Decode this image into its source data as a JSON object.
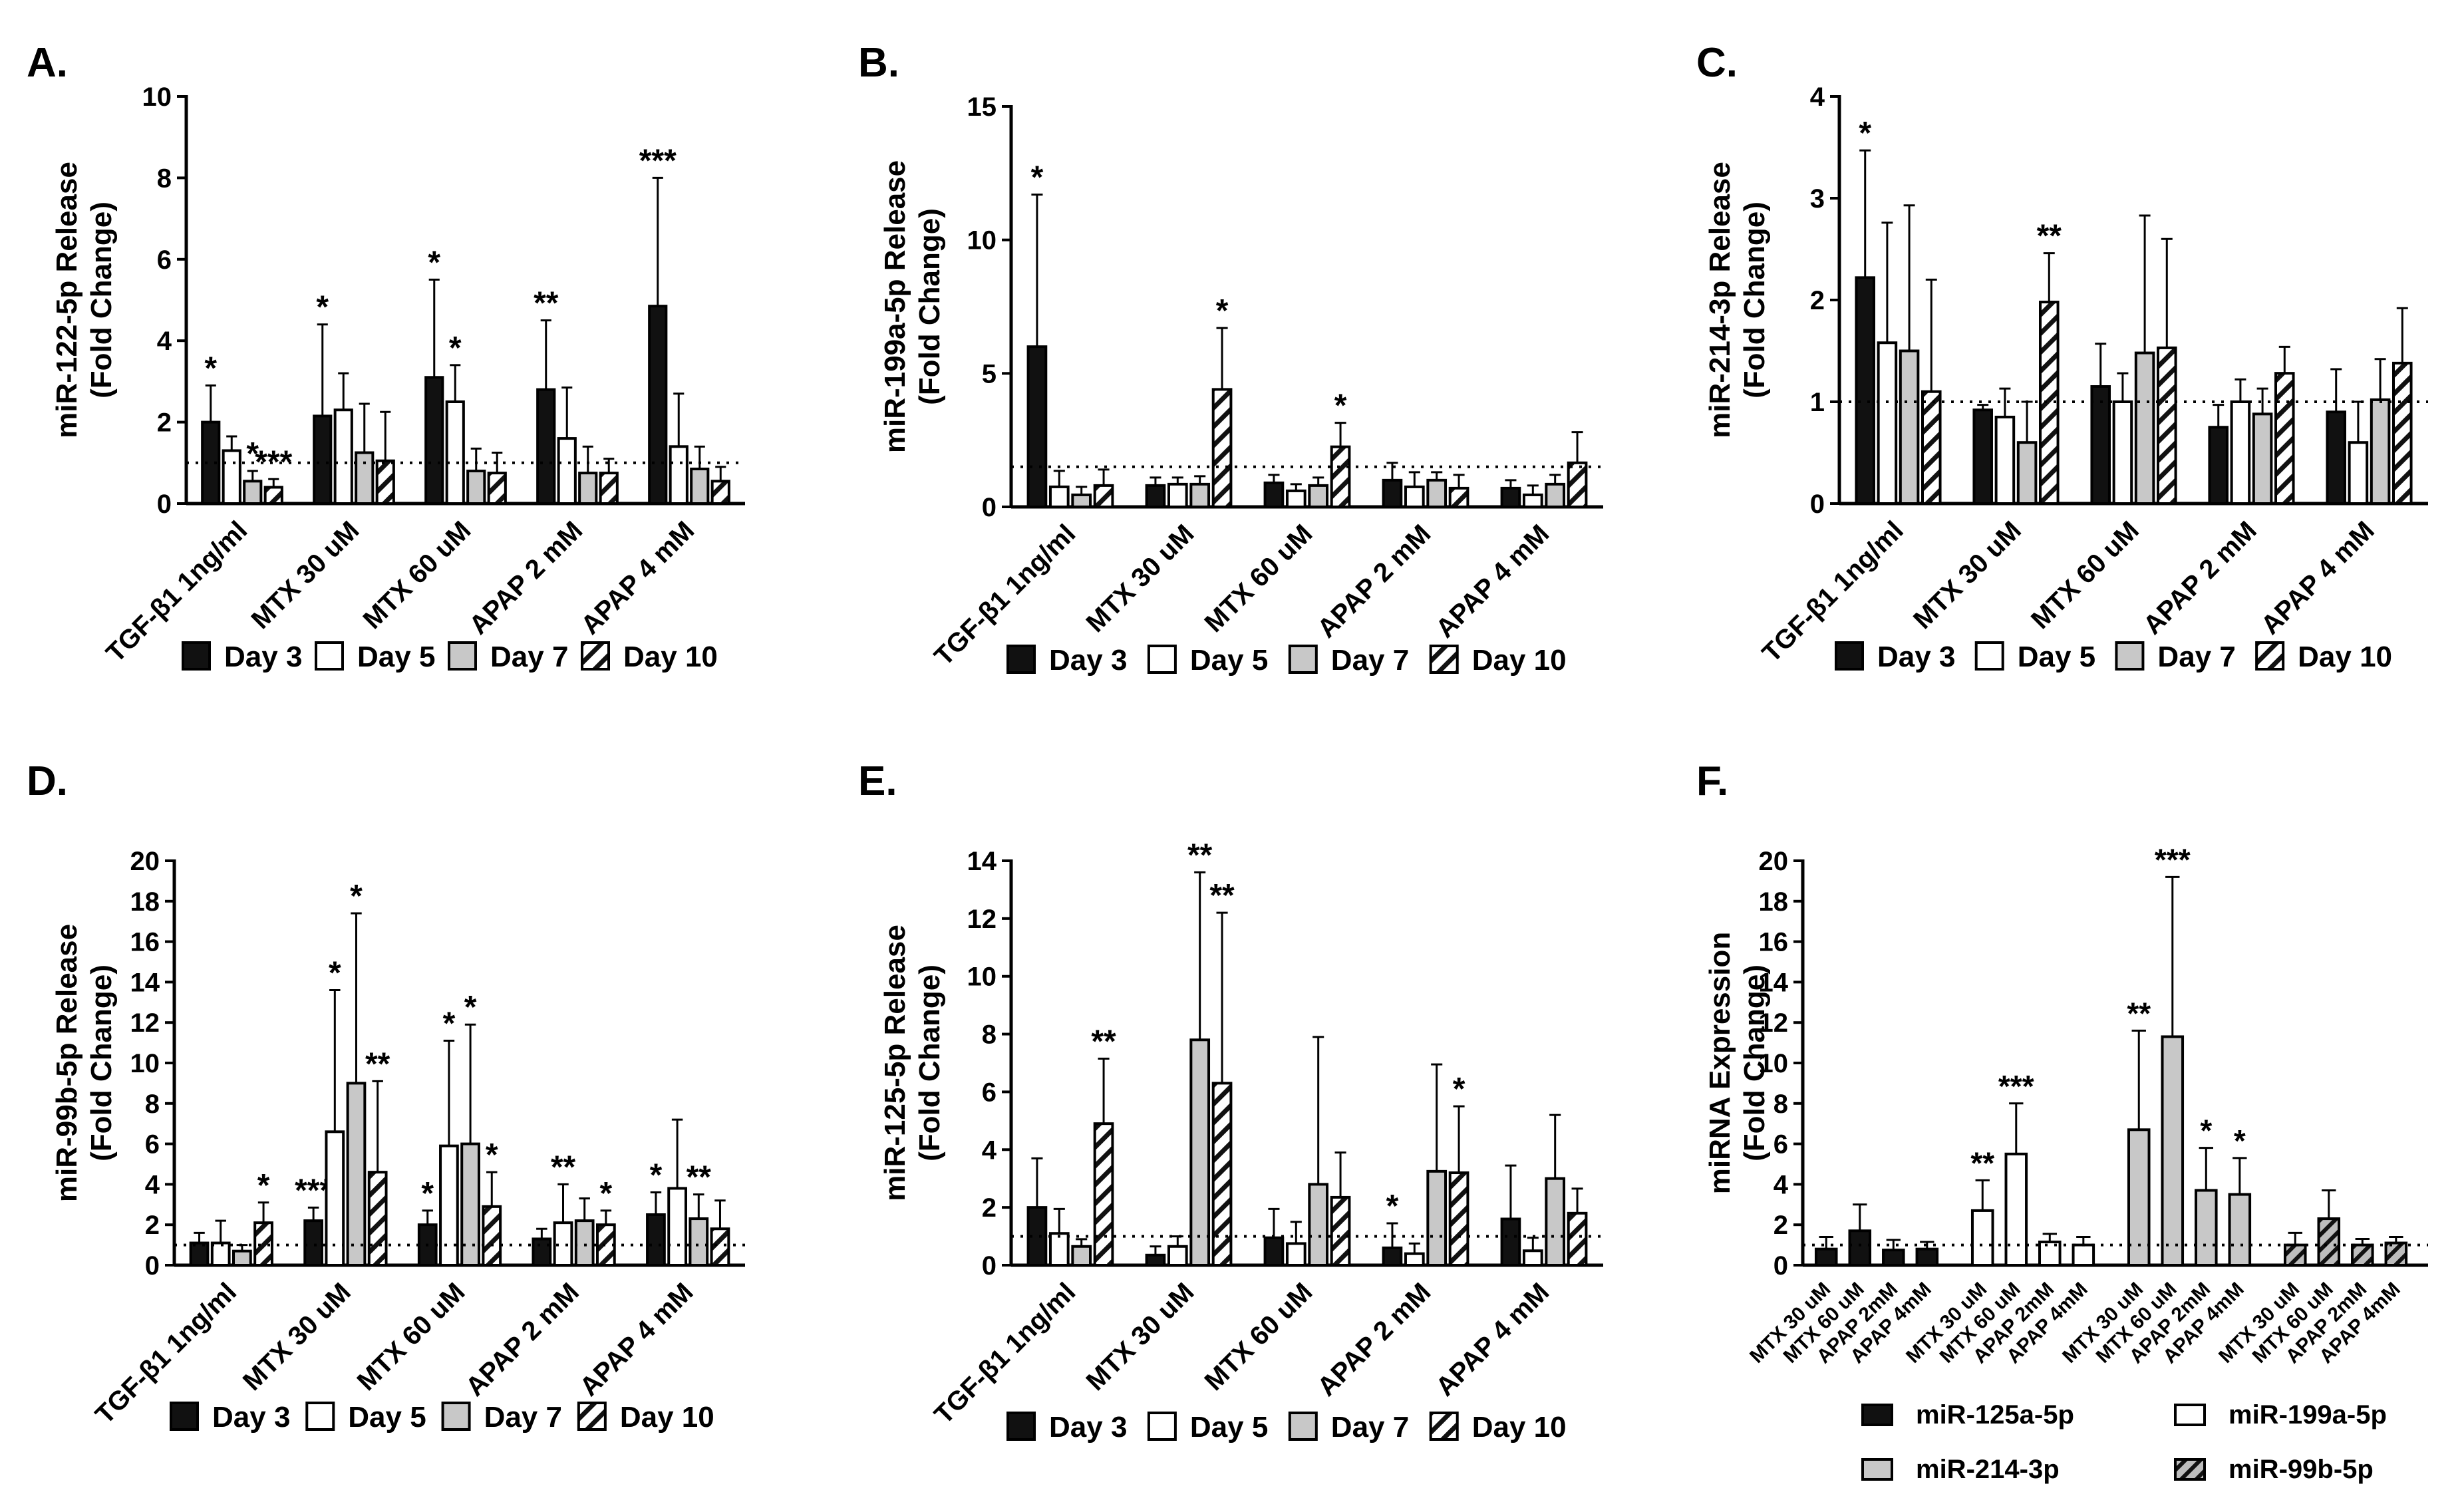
{
  "figure": {
    "legend_day": [
      "Day 3",
      "Day 5",
      "Day 7",
      "Day 10"
    ],
    "legend_mirna": [
      "miR-125a-5p",
      "miR-199a-5p",
      "miR-214-3p",
      "miR-99b-5p"
    ]
  },
  "chart_data": [
    {
      "panel": "A.",
      "type": "bar",
      "ylabel": "miR-122-5p Release",
      "ylabel2": "(Fold Change)",
      "categories": [
        "TGF-β1 1ng/ml",
        "MTX 30 uM",
        "MTX 60 uM",
        "APAP 2 mM",
        "APAP 4 mM"
      ],
      "ylim": [
        0,
        10
      ],
      "yticks": [
        0,
        2,
        4,
        6,
        8,
        10
      ],
      "baseline": 1.0,
      "legend": [
        "Day 3",
        "Day 5",
        "Day 7",
        "Day 10"
      ],
      "series": [
        {
          "name": "Day 3",
          "values": [
            2.0,
            2.15,
            3.1,
            2.8,
            4.85
          ],
          "errors": [
            0.9,
            2.25,
            2.4,
            1.7,
            3.15
          ],
          "sig": [
            "*",
            "*",
            "*",
            "**",
            "***"
          ]
        },
        {
          "name": "Day 5",
          "values": [
            1.3,
            2.3,
            2.5,
            1.6,
            1.4
          ],
          "errors": [
            0.35,
            0.9,
            0.9,
            1.25,
            1.3
          ],
          "sig": [
            "",
            "",
            "*",
            "",
            ""
          ]
        },
        {
          "name": "Day 7",
          "values": [
            0.55,
            1.25,
            0.8,
            0.75,
            0.85
          ],
          "errors": [
            0.25,
            1.2,
            0.55,
            0.65,
            0.55
          ],
          "sig": [
            "*",
            "",
            "",
            "",
            ""
          ]
        },
        {
          "name": "Day 10",
          "values": [
            0.4,
            1.05,
            0.75,
            0.75,
            0.55
          ],
          "errors": [
            0.2,
            1.2,
            0.5,
            0.35,
            0.35
          ],
          "sig": [
            "***",
            "",
            "",
            "",
            ""
          ]
        }
      ]
    },
    {
      "panel": "B.",
      "type": "bar",
      "ylabel": "miR-199a-5p Release",
      "ylabel2": "(Fold Change)",
      "categories": [
        "TGF-β1 1ng/ml",
        "MTX 30 uM",
        "MTX 60 uM",
        "APAP 2 mM",
        "APAP 4 mM"
      ],
      "ylim": [
        0,
        15
      ],
      "yticks": [
        0,
        5,
        10,
        15
      ],
      "baseline": 1.5,
      "legend": [
        "Day 3",
        "Day 5",
        "Day 7",
        "Day 10"
      ],
      "series": [
        {
          "name": "Day 3",
          "values": [
            6.0,
            0.8,
            0.9,
            1.0,
            0.7
          ],
          "errors": [
            5.7,
            0.3,
            0.3,
            0.65,
            0.3
          ],
          "sig": [
            "*",
            "",
            "",
            "",
            ""
          ]
        },
        {
          "name": "Day 5",
          "values": [
            0.75,
            0.85,
            0.6,
            0.75,
            0.45
          ],
          "errors": [
            0.6,
            0.25,
            0.25,
            0.55,
            0.35
          ],
          "sig": [
            "",
            "",
            "",
            "",
            ""
          ]
        },
        {
          "name": "Day 7",
          "values": [
            0.45,
            0.85,
            0.8,
            1.0,
            0.85
          ],
          "errors": [
            0.3,
            0.3,
            0.3,
            0.3,
            0.35
          ],
          "sig": [
            "",
            "",
            "",
            "",
            ""
          ]
        },
        {
          "name": "Day 10",
          "values": [
            0.8,
            4.4,
            2.25,
            0.7,
            1.65
          ],
          "errors": [
            0.6,
            2.3,
            0.9,
            0.5,
            1.15
          ],
          "sig": [
            "",
            "*",
            "*",
            "",
            ""
          ]
        }
      ]
    },
    {
      "panel": "C.",
      "type": "bar",
      "ylabel": "miR-214-3p Release",
      "ylabel2": "(Fold Change)",
      "categories": [
        "TGF-β1 1ng/ml",
        "MTX 30 uM",
        "MTX 60 uM",
        "APAP 2 mM",
        "APAP 4 mM"
      ],
      "ylim": [
        0,
        4
      ],
      "yticks": [
        0,
        1,
        2,
        3,
        4
      ],
      "baseline": 1.0,
      "legend": [
        "Day 3",
        "Day 5",
        "Day 7",
        "Day 10"
      ],
      "series": [
        {
          "name": "Day 3",
          "values": [
            2.22,
            0.92,
            1.15,
            0.75,
            0.9
          ],
          "errors": [
            1.25,
            0.05,
            0.42,
            0.22,
            0.42
          ],
          "sig": [
            "*",
            "",
            "",
            "",
            ""
          ]
        },
        {
          "name": "Day 5",
          "values": [
            1.58,
            0.85,
            1.0,
            1.0,
            0.6
          ],
          "errors": [
            1.18,
            0.28,
            0.28,
            0.22,
            0.4
          ],
          "sig": [
            "",
            "",
            "",
            "",
            ""
          ]
        },
        {
          "name": "Day 7",
          "values": [
            1.5,
            0.6,
            1.48,
            0.88,
            1.02
          ],
          "errors": [
            1.43,
            0.4,
            1.35,
            0.25,
            0.4
          ],
          "sig": [
            "",
            "",
            "",
            "",
            ""
          ]
        },
        {
          "name": "Day 10",
          "values": [
            1.1,
            1.98,
            1.53,
            1.28,
            1.38
          ],
          "errors": [
            1.1,
            0.48,
            1.07,
            0.26,
            0.54
          ],
          "sig": [
            "",
            "**",
            "",
            "",
            ""
          ]
        }
      ]
    },
    {
      "panel": "D.",
      "type": "bar",
      "ylabel": "miR-99b-5p Release",
      "ylabel2": "(Fold Change)",
      "categories": [
        "TGF-β1 1ng/ml",
        "MTX 30 uM",
        "MTX 60 uM",
        "APAP 2 mM",
        "APAP 4 mM"
      ],
      "ylim": [
        0,
        20
      ],
      "yticks": [
        0,
        2,
        4,
        6,
        8,
        10,
        12,
        14,
        16,
        18,
        20
      ],
      "baseline": 1.0,
      "legend": [
        "Day 3",
        "Day 5",
        "Day 7",
        "Day 10"
      ],
      "series": [
        {
          "name": "Day 3",
          "values": [
            1.1,
            2.2,
            2.0,
            1.3,
            2.5
          ],
          "errors": [
            0.5,
            0.65,
            0.7,
            0.5,
            1.1
          ],
          "sig": [
            "",
            "***",
            "*",
            "",
            "*"
          ]
        },
        {
          "name": "Day 5",
          "values": [
            1.1,
            6.6,
            5.9,
            2.1,
            3.8
          ],
          "errors": [
            1.1,
            7.0,
            5.2,
            1.9,
            3.4
          ],
          "sig": [
            "",
            "*",
            "*",
            "**",
            ""
          ]
        },
        {
          "name": "Day 7",
          "values": [
            0.7,
            9.0,
            6.0,
            2.2,
            2.3
          ],
          "errors": [
            0.3,
            8.4,
            5.9,
            1.1,
            1.2
          ],
          "sig": [
            "",
            "*",
            "*",
            "",
            "**"
          ]
        },
        {
          "name": "Day 10",
          "values": [
            2.1,
            4.6,
            2.9,
            2.0,
            1.8
          ],
          "errors": [
            1.0,
            4.5,
            1.7,
            0.7,
            1.4
          ],
          "sig": [
            "*",
            "**",
            "*",
            "*",
            ""
          ]
        }
      ]
    },
    {
      "panel": "E.",
      "type": "bar",
      "ylabel": "miR-125-5p Release",
      "ylabel2": "(Fold Change)",
      "categories": [
        "TGF-β1 1ng/ml",
        "MTX 30 uM",
        "MTX 60 uM",
        "APAP 2 mM",
        "APAP 4 mM"
      ],
      "ylim": [
        0,
        14
      ],
      "yticks": [
        0,
        2,
        4,
        6,
        8,
        10,
        12,
        14
      ],
      "baseline": 1.0,
      "legend": [
        "Day 3",
        "Day 5",
        "Day 7",
        "Day 10"
      ],
      "series": [
        {
          "name": "Day 3",
          "values": [
            2.0,
            0.35,
            0.95,
            0.6,
            1.6
          ],
          "errors": [
            1.7,
            0.3,
            1.0,
            0.85,
            1.85
          ],
          "sig": [
            "",
            "",
            "",
            "*",
            ""
          ]
        },
        {
          "name": "Day 5",
          "values": [
            1.1,
            0.65,
            0.75,
            0.4,
            0.5
          ],
          "errors": [
            0.85,
            0.35,
            0.75,
            0.35,
            0.45
          ],
          "sig": [
            "",
            "",
            "",
            "",
            ""
          ]
        },
        {
          "name": "Day 7",
          "values": [
            0.65,
            7.8,
            2.8,
            3.25,
            3.0
          ],
          "errors": [
            0.25,
            5.8,
            5.1,
            3.7,
            2.2
          ],
          "sig": [
            "",
            "**",
            "",
            "",
            ""
          ]
        },
        {
          "name": "Day 10",
          "values": [
            4.9,
            6.3,
            2.35,
            3.2,
            1.8
          ],
          "errors": [
            2.25,
            5.9,
            1.55,
            2.3,
            0.85
          ],
          "sig": [
            "**",
            "**",
            "",
            "*",
            ""
          ]
        }
      ]
    },
    {
      "panel": "F.",
      "type": "bar",
      "ylabel": "miRNA Expression",
      "ylabel2": "(Fold Change)",
      "categories": [
        "MTX 30 uM",
        "MTX 60 uM",
        "APAP 2mM",
        "APAP 4mM"
      ],
      "ylim": [
        0,
        20
      ],
      "yticks": [
        0,
        2,
        4,
        6,
        8,
        10,
        12,
        14,
        16,
        18,
        20
      ],
      "baseline": 1.0,
      "legend": [
        "miR-125a-5p",
        "miR-199a-5p",
        "miR-214-3p",
        "miR-99b-5p"
      ],
      "series": [
        {
          "name": "miR-125a-5p",
          "values": [
            0.8,
            1.7,
            0.75,
            0.8
          ],
          "errors": [
            0.6,
            1.3,
            0.5,
            0.35
          ],
          "sig": [
            "",
            "",
            "",
            ""
          ]
        },
        {
          "name": "miR-199a-5p",
          "values": [
            2.7,
            5.5,
            1.15,
            1.0
          ],
          "errors": [
            1.5,
            2.5,
            0.4,
            0.4
          ],
          "sig": [
            "**",
            "***",
            "",
            ""
          ]
        },
        {
          "name": "miR-214-3p",
          "values": [
            6.7,
            11.3,
            3.7,
            3.5
          ],
          "errors": [
            4.9,
            7.9,
            2.1,
            1.8
          ],
          "sig": [
            "**",
            "***",
            "*",
            "*"
          ]
        },
        {
          "name": "miR-99b-5p",
          "values": [
            1.0,
            2.3,
            1.0,
            1.1
          ],
          "errors": [
            0.6,
            1.4,
            0.3,
            0.3
          ],
          "sig": [
            "",
            "",
            "",
            ""
          ]
        }
      ]
    }
  ]
}
